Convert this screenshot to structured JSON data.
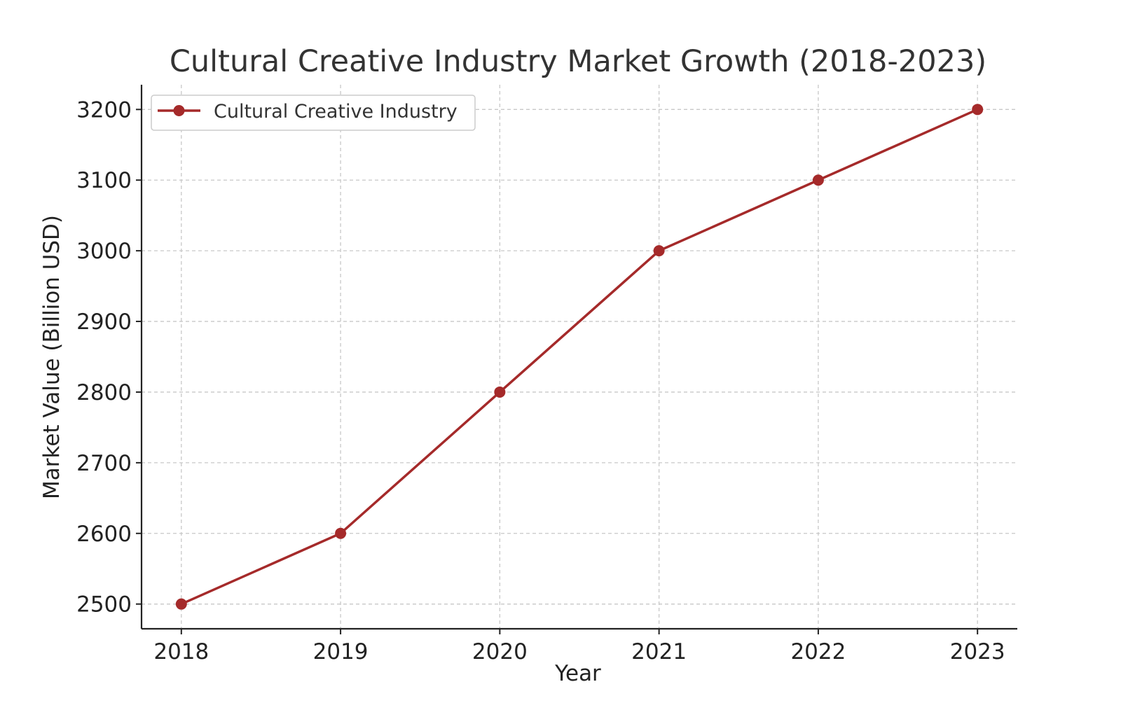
{
  "chart_data": {
    "type": "line",
    "title": "Cultural Creative Industry Market Growth (2018-2023)",
    "xlabel": "Year",
    "ylabel": "Market Value (Billion USD)",
    "x": [
      2018,
      2019,
      2020,
      2021,
      2022,
      2023
    ],
    "x_tick_labels": [
      "2018",
      "2019",
      "2020",
      "2021",
      "2022",
      "2023"
    ],
    "y_ticks": [
      2500,
      2600,
      2700,
      2800,
      2900,
      3000,
      3100,
      3200
    ],
    "y_tick_labels": [
      "2500",
      "2600",
      "2700",
      "2800",
      "2900",
      "3000",
      "3100",
      "3200"
    ],
    "xlim": [
      2017.75,
      2023.25
    ],
    "ylim": [
      2465,
      3235
    ],
    "grid": true,
    "legend_position": "top-left",
    "series": [
      {
        "name": "Cultural Creative Industry",
        "color": "#a52a2a",
        "marker": "circle",
        "values": [
          2500,
          2600,
          2800,
          3000,
          3100,
          3200
        ]
      }
    ]
  }
}
